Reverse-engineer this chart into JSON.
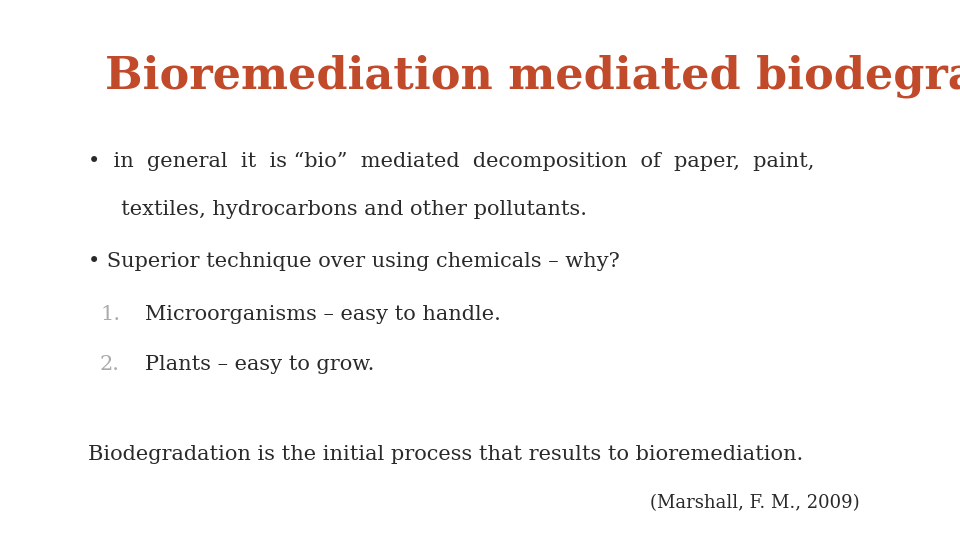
{
  "title": "Bioremediation mediated biodegradation",
  "title_color": "#C04A2A",
  "title_fontsize": 32,
  "background_color": "#FFFFFF",
  "bullet1_line1": "•  in  general  it  is “bio”  mediated  decomposition  of  paper,  paint,",
  "bullet1_line2": "     textiles, hydrocarbons and other pollutants.",
  "bullet2": "• Superior technique over using chemicals – why?",
  "num1_number": "1.",
  "num1_text": "Microorganisms – easy to handle.",
  "num2_number": "2.",
  "num2_text": "Plants – easy to grow.",
  "footer": "Biodegradation is the initial process that results to bioremediation.",
  "citation": "(Marshall, F. M., 2009)",
  "body_color": "#2A2A2A",
  "number_color": "#AAAAAA",
  "body_fontsize": 15,
  "footer_fontsize": 15,
  "citation_fontsize": 13,
  "font_family": "DejaVu Serif"
}
